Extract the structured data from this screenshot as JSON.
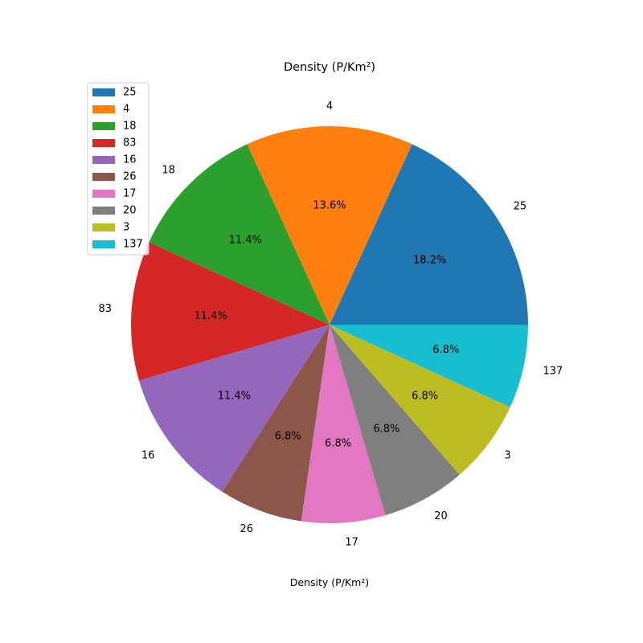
{
  "chart_data": {
    "type": "pie",
    "title": "Density (P/Km²)",
    "xlabel": "Density (P/Km²)",
    "ylabel": "",
    "legend_placement": "upper-left",
    "start_angle_deg": 0,
    "direction": "counterclockwise",
    "categories": [
      "25",
      "4",
      "18",
      "83",
      "16",
      "26",
      "17",
      "20",
      "3",
      "137"
    ],
    "values": [
      8,
      6,
      5,
      5,
      5,
      3,
      3,
      3,
      3,
      3
    ],
    "percent_labels": [
      "18.2%",
      "13.6%",
      "11.4%",
      "11.4%",
      "11.4%",
      "6.8%",
      "6.8%",
      "6.8%",
      "6.8%",
      "6.8%"
    ],
    "colors": [
      "#1f77b4",
      "#ff7f0e",
      "#2ca02c",
      "#d62728",
      "#9467bd",
      "#8c564b",
      "#e377c2",
      "#7f7f7f",
      "#bcbd22",
      "#17becf"
    ]
  }
}
